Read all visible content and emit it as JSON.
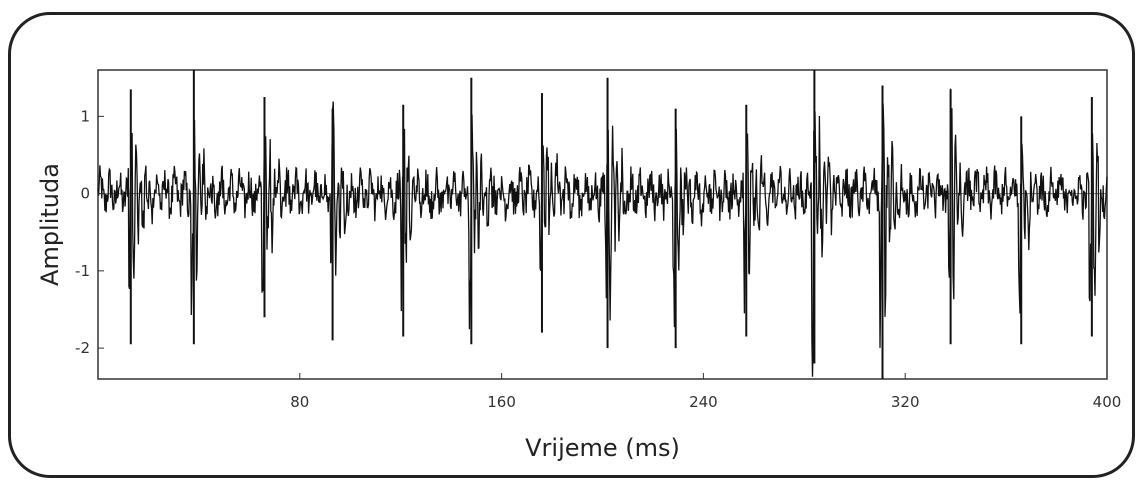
{
  "chart_data": {
    "type": "line",
    "title": "",
    "xlabel": "Vrijeme (ms)",
    "ylabel": "Amplituda",
    "xlim": [
      0,
      400
    ],
    "ylim": [
      -2.4,
      1.6
    ],
    "xticks": [
      80,
      160,
      240,
      320,
      400
    ],
    "xtick_labels": [
      "80",
      "160",
      "240",
      "320",
      "400"
    ],
    "yticks": [
      1,
      0,
      -1,
      -2
    ],
    "ytick_labels": [
      "1",
      "0",
      "-1",
      "-2"
    ],
    "grid": false,
    "series": [
      {
        "color": "#111111",
        "bursts": [
          {
            "t": 13,
            "peak": 1.35,
            "trough": -1.95
          },
          {
            "t": 38,
            "peak": 1.6,
            "trough": -1.95
          },
          {
            "t": 66,
            "peak": 1.25,
            "trough": -1.6
          },
          {
            "t": 93,
            "peak": 1.1,
            "trough": -1.9
          },
          {
            "t": 121,
            "peak": 1.15,
            "trough": -1.85
          },
          {
            "t": 148,
            "peak": 1.5,
            "trough": -1.95
          },
          {
            "t": 176,
            "peak": 1.3,
            "trough": -1.8
          },
          {
            "t": 202,
            "peak": 1.5,
            "trough": -2.0
          },
          {
            "t": 229,
            "peak": 1.1,
            "trough": -2.0
          },
          {
            "t": 257,
            "peak": 1.15,
            "trough": -1.85
          },
          {
            "t": 284,
            "peak": 1.6,
            "trough": -2.2
          },
          {
            "t": 311,
            "peak": 1.4,
            "trough": -2.4
          },
          {
            "t": 338,
            "peak": 1.35,
            "trough": -1.95
          },
          {
            "t": 366,
            "peak": 1.0,
            "trough": -1.95
          },
          {
            "t": 394,
            "peak": 1.25,
            "trough": -1.85
          }
        ]
      }
    ]
  }
}
